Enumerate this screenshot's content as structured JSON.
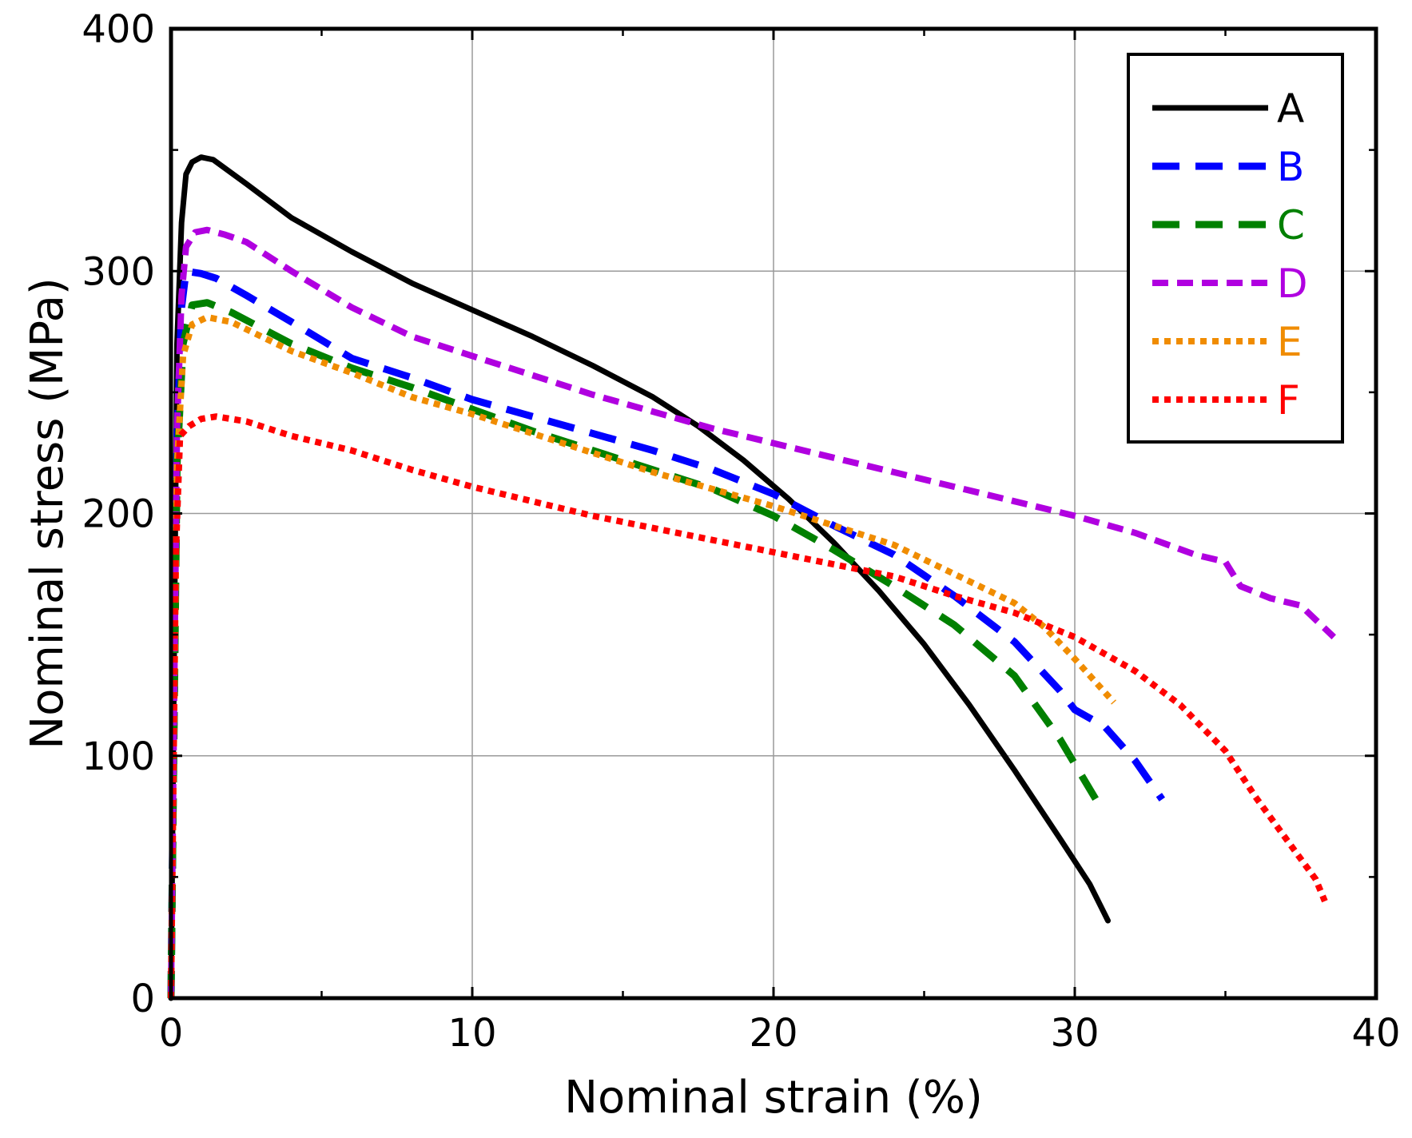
{
  "chart_data": {
    "type": "line",
    "title": "",
    "xlabel": "Nominal strain (%)",
    "ylabel": "Nominal stress (MPa)",
    "xlim": [
      0,
      40
    ],
    "ylim": [
      0,
      400
    ],
    "x_ticks": [
      0,
      10,
      20,
      30,
      40
    ],
    "y_ticks": [
      0,
      100,
      200,
      300,
      400
    ],
    "x_minor_ticks": [
      5,
      15,
      25,
      35
    ],
    "y_minor_ticks": [
      50,
      150,
      250,
      350
    ],
    "grid": true,
    "legend_position": "top-right",
    "series": [
      {
        "name": "A",
        "color": "#000000",
        "style": "solid",
        "x": [
          0,
          0.2,
          0.35,
          0.5,
          0.7,
          1.0,
          1.4,
          2.5,
          4,
          6,
          8,
          10,
          12,
          14,
          16,
          17.5,
          19,
          20.5,
          22,
          23.5,
          25,
          26.5,
          28,
          29.5,
          30.5,
          31.1
        ],
        "y": [
          0,
          270,
          320,
          340,
          345,
          347,
          346,
          336,
          322,
          308,
          295,
          284,
          273,
          261,
          248,
          236,
          222,
          206,
          188,
          168,
          146,
          121,
          94,
          66,
          47,
          32
        ]
      },
      {
        "name": "B",
        "color": "#0000ff",
        "style": "longdash",
        "x": [
          0,
          0.2,
          0.35,
          0.5,
          1.0,
          1.5,
          2.5,
          4,
          6,
          8,
          10,
          12,
          14,
          16,
          18,
          20,
          22,
          24,
          26,
          28,
          29.5,
          30,
          31,
          32,
          32.9
        ],
        "y": [
          0,
          230,
          285,
          300,
          299,
          297,
          290,
          279,
          264,
          256,
          247,
          240,
          233,
          226,
          218,
          208,
          195,
          183,
          166,
          147,
          127,
          119,
          112,
          98,
          82
        ]
      },
      {
        "name": "C",
        "color": "#008000",
        "style": "longdash",
        "x": [
          0,
          0.2,
          0.4,
          0.7,
          1.2,
          2,
          4,
          6,
          8,
          10,
          12,
          14,
          16,
          18,
          20,
          22,
          24,
          26,
          28,
          29.5,
          30.7
        ],
        "y": [
          0,
          220,
          270,
          286,
          287,
          283,
          270,
          260,
          252,
          243,
          234,
          226,
          218,
          210,
          199,
          185,
          170,
          154,
          133,
          107,
          82
        ]
      },
      {
        "name": "D",
        "color": "#b000e0",
        "style": "dash",
        "x": [
          0,
          0.2,
          0.35,
          0.5,
          0.8,
          1.2,
          1.8,
          2.5,
          4,
          6,
          8,
          10,
          12,
          14,
          16,
          18,
          20,
          22,
          24,
          26,
          28,
          30,
          32,
          34,
          35,
          35.5,
          36.5,
          37.5,
          38.6
        ],
        "y": [
          0,
          235,
          290,
          310,
          316,
          317,
          315,
          312,
          300,
          285,
          273,
          265,
          257,
          249,
          242,
          235,
          229,
          223,
          217,
          211,
          205,
          199,
          192,
          183,
          180,
          170,
          165,
          162,
          149
        ]
      },
      {
        "name": "E",
        "color": "#f08c00",
        "style": "dot",
        "x": [
          0,
          0.2,
          0.4,
          0.7,
          1.2,
          2,
          4,
          6,
          8,
          10,
          12,
          14,
          16,
          18,
          20,
          22,
          24,
          26,
          28,
          29,
          30,
          31.3
        ],
        "y": [
          0,
          220,
          265,
          278,
          281,
          279,
          267,
          258,
          248,
          241,
          233,
          225,
          217,
          210,
          203,
          195,
          187,
          175,
          163,
          153,
          140,
          122
        ]
      },
      {
        "name": "F",
        "color": "#ff0000",
        "style": "dot",
        "x": [
          0,
          0.15,
          0.3,
          0.6,
          1.0,
          1.5,
          2.5,
          4,
          6,
          8,
          10,
          12,
          14,
          16,
          18,
          20,
          22,
          24,
          26,
          28,
          30,
          32,
          33.5,
          35,
          36,
          37,
          38,
          38.3
        ],
        "y": [
          0,
          180,
          232,
          236,
          239,
          240,
          238,
          232,
          226,
          218,
          211,
          205,
          199,
          194,
          189,
          184,
          179,
          174,
          166,
          159,
          149,
          135,
          121,
          102,
          83,
          66,
          49,
          40
        ]
      }
    ]
  }
}
